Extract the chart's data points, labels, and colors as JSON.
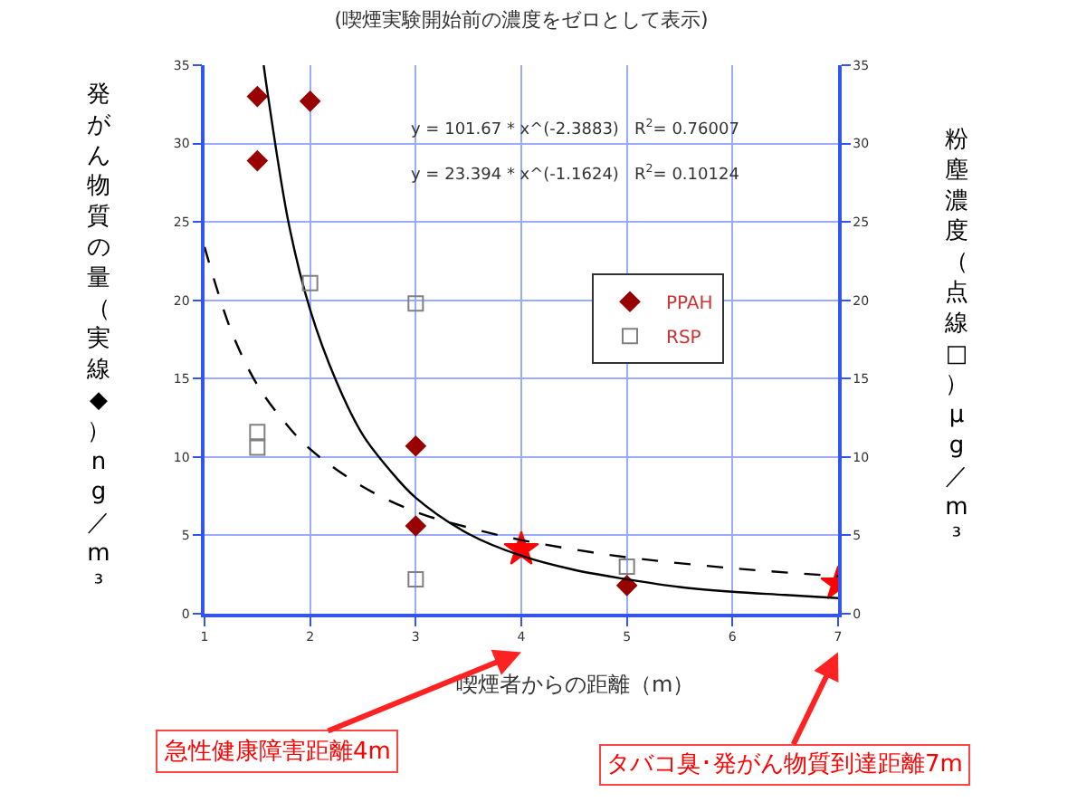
{
  "chart_data": {
    "type": "scatter",
    "title": "(喫煙実験開始前の濃度をゼロとして表示)",
    "xlabel": "喫煙者からの距離（m）",
    "ylabel": "発がん物質の量（実線 ◆）ng／m³",
    "y2label": "粉塵濃度（点線 □）μg／m³",
    "xlim": [
      1,
      7
    ],
    "xticks": [
      1,
      2,
      3,
      4,
      5,
      6,
      7
    ],
    "ylim": [
      0,
      35
    ],
    "yticks": [
      0,
      5,
      10,
      15,
      20,
      25,
      30,
      35
    ],
    "y2lim": [
      0,
      35
    ],
    "y2ticks": [
      0,
      5,
      10,
      15,
      20,
      25,
      30,
      35
    ],
    "grid": true,
    "legend": "right",
    "series": [
      {
        "name": "PPAH",
        "marker": "diamond",
        "color": "#990000",
        "x": [
          1.5,
          1.5,
          2,
          3,
          3,
          5
        ],
        "values": [
          33,
          28.9,
          32.7,
          10.7,
          5.6,
          1.8
        ]
      },
      {
        "name": "RSP",
        "marker": "square",
        "color": "#808080",
        "axis": "y2",
        "x": [
          1.5,
          1.5,
          2,
          3,
          3,
          5
        ],
        "values": [
          11.6,
          10.6,
          21.1,
          19.8,
          2.2,
          3.0
        ]
      },
      {
        "type": "line",
        "line_style": "solid",
        "color": "#000000",
        "x": [
          1.56,
          1.6,
          1.8,
          2,
          2.25,
          2.5,
          2.75,
          3,
          3.5,
          4,
          4.5,
          5,
          5.5,
          6,
          6.5,
          7
        ],
        "values": [
          35,
          33.1,
          24.8,
          19.4,
          14.8,
          11.4,
          9.2,
          7.4,
          5.1,
          3.7,
          2.8,
          2.2,
          1.7,
          1.4,
          1.2,
          1.0
        ]
      },
      {
        "type": "line",
        "line_style": "dashed",
        "color": "#000000",
        "axis": "y2",
        "x": [
          1,
          1.25,
          1.5,
          1.75,
          2,
          2.5,
          3,
          3.5,
          4,
          4.5,
          5,
          6,
          7
        ],
        "values": [
          23.4,
          18.1,
          14.6,
          12.3,
          10.5,
          8.1,
          6.5,
          5.5,
          4.7,
          4.1,
          3.6,
          2.9,
          2.4
        ]
      },
      {
        "marker": "star",
        "color": "#ff0000",
        "x": [
          4
        ],
        "values": [
          4.1
        ]
      },
      {
        "marker": "star",
        "color": "#ff0000",
        "x": [
          7
        ],
        "values": [
          1.9
        ]
      }
    ],
    "annotations": [
      "y = 101.67 * x^(-2.3883)   R$^{2}$= 0.76007",
      "y = 23.394 * x^(-1.1624)   R$^{2}$= 0.10124",
      "急性健康障害距離4m",
      "タバコ臭･発がん物質到達距離7m"
    ]
  }
}
